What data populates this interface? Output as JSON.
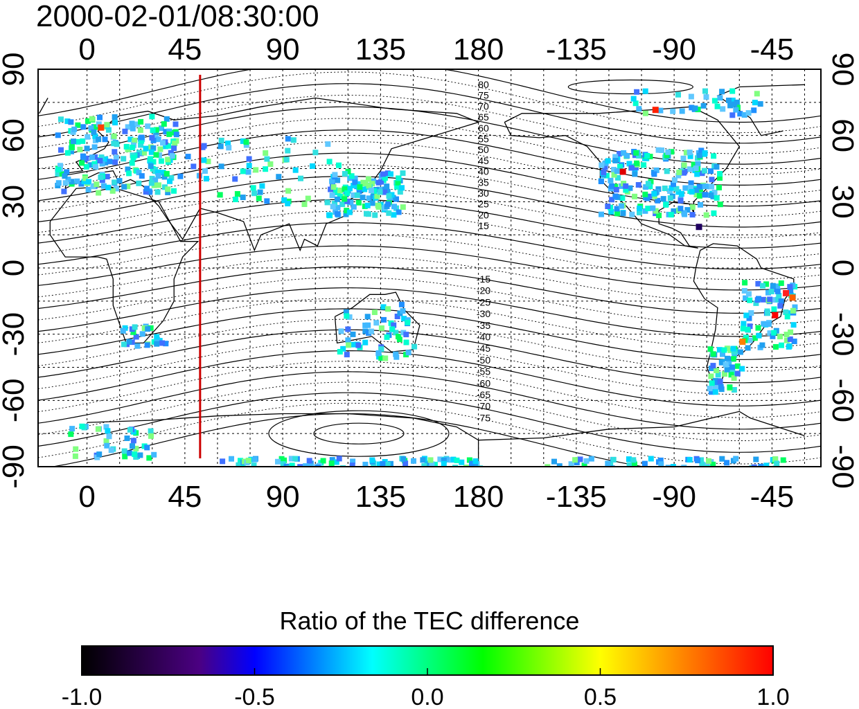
{
  "title": "2000-02-01/08:30:00",
  "map": {
    "x_ticks": [
      "0",
      "45",
      "90",
      "135",
      "180",
      "-135",
      "-90",
      "-45"
    ],
    "y_ticks": [
      "90",
      "60",
      "30",
      "0",
      "-30",
      "-60",
      "-90"
    ],
    "contour_labels_north": [
      "80",
      "75",
      "70",
      "65",
      "60",
      "55",
      "50",
      "45",
      "40",
      "35",
      "30",
      "25",
      "20",
      "15"
    ],
    "contour_labels_south": [
      "-15",
      "-20",
      "-25",
      "-30",
      "-35",
      "-40",
      "-45",
      "-50",
      "-55",
      "-60",
      "-65",
      "-70",
      "-75"
    ],
    "terminator_lon": 52,
    "projection": "equirectangular",
    "colors": {
      "frame": "#000000",
      "grid": "#000000",
      "terminator": "#cc0000"
    }
  },
  "colorbar": {
    "title": "Ratio of the TEC difference",
    "ticks": [
      "-1.0",
      "-0.5",
      "0.0",
      "0.5",
      "1.0"
    ],
    "range": [
      -1.0,
      1.0
    ],
    "colormap": [
      "#000000",
      "#4b0082",
      "#0000ff",
      "#00ffff",
      "#00ff00",
      "#ffff00",
      "#ff0000"
    ]
  }
}
